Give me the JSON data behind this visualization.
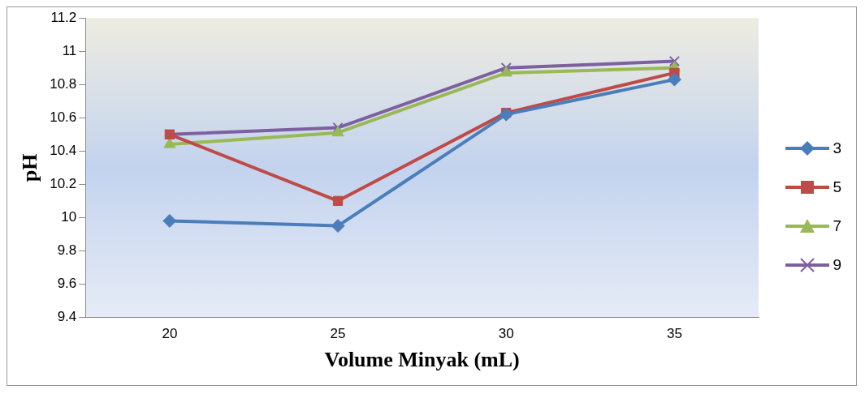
{
  "chart_data": {
    "type": "line",
    "xlabel": "Volume Minyak (mL)",
    "ylabel": "pH",
    "categories": [
      "20",
      "25",
      "30",
      "35"
    ],
    "series": [
      {
        "name": "3",
        "color": "#4a7ebb",
        "marker": "diamond",
        "values": [
          9.98,
          9.95,
          10.62,
          10.83
        ]
      },
      {
        "name": "5",
        "color": "#be4b48",
        "marker": "square",
        "values": [
          10.5,
          10.1,
          10.63,
          10.87
        ]
      },
      {
        "name": "7",
        "color": "#98b954",
        "marker": "triangle",
        "values": [
          10.44,
          10.51,
          10.87,
          10.9
        ]
      },
      {
        "name": "9",
        "color": "#7d60a0",
        "marker": "cross",
        "values": [
          10.5,
          10.54,
          10.9,
          10.94
        ]
      }
    ],
    "ylim": [
      9.4,
      11.2
    ],
    "yticks": [
      9.4,
      9.6,
      9.8,
      10,
      10.2,
      10.4,
      10.6,
      10.8,
      11,
      11.2
    ],
    "grid": false,
    "legend": "right"
  }
}
